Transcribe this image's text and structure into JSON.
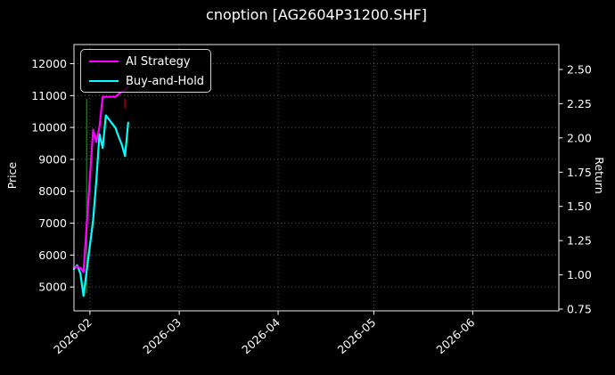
{
  "window": {
    "title": "cnoption [AG2604P31200.SHF]"
  },
  "colors": {
    "background": "#000000",
    "foreground": "#ffffff",
    "spine": "#e8e8e8",
    "grid": "#666666",
    "ai_strategy": "#ff00ff",
    "buy_and_hold": "#00ffff",
    "buy_signal": "#008000",
    "sell_marker": "#8b0000"
  },
  "legend": {
    "items": [
      {
        "label": "AI Strategy",
        "color": "#ff00ff"
      },
      {
        "label": "Buy-and-Hold",
        "color": "#00ffff"
      }
    ]
  },
  "axes": {
    "left_label": "Price",
    "right_label": "Return",
    "price_ticks": [
      5000,
      6000,
      7000,
      8000,
      9000,
      10000,
      11000,
      12000
    ],
    "return_ticks": [
      0.75,
      1.0,
      1.25,
      1.5,
      1.75,
      2.0,
      2.25,
      2.5
    ],
    "x_ticks": [
      {
        "date": "2026-02-01",
        "label": "2026-02"
      },
      {
        "date": "2026-03-01",
        "label": "2026-03"
      },
      {
        "date": "2026-04-01",
        "label": "2026-04"
      },
      {
        "date": "2026-05-01",
        "label": "2026-05"
      },
      {
        "date": "2026-06-01",
        "label": "2026-06"
      }
    ]
  },
  "chart_data": {
    "type": "line",
    "title": "cnoption [AG2604P31200.SHF]",
    "xlabel": "",
    "ylabel_left": "Price",
    "ylabel_right": "Return",
    "grid": true,
    "legend_position": "upper left",
    "xlim": [
      "2026-01-27",
      "2026-06-28"
    ],
    "price_lim": [
      4250,
      12600
    ],
    "return_lim": [
      0.737,
      2.682
    ],
    "x": [
      "2026-01-27",
      "2026-01-28",
      "2026-01-29",
      "2026-01-30",
      "2026-02-02",
      "2026-02-03",
      "2026-02-04",
      "2026-02-05",
      "2026-02-06",
      "2026-02-09",
      "2026-02-10",
      "2026-02-11",
      "2026-02-12",
      "2026-02-13"
    ],
    "series": [
      {
        "name": "Buy-and-Hold",
        "axis": "price",
        "color": "#00ffff",
        "values": [
          5560,
          5680,
          5420,
          4720,
          7100,
          8340,
          9790,
          9360,
          10380,
          9990,
          9710,
          9460,
          9100,
          10150
        ]
      },
      {
        "name": "AI Strategy",
        "axis": "return",
        "color": "#ff00ff",
        "values": [
          1.05,
          1.06,
          1.05,
          1.02,
          2.06,
          1.97,
          2.08,
          2.3,
          2.3,
          2.3,
          2.32,
          2.34,
          2.35,
          2.37
        ]
      }
    ],
    "markers": [
      {
        "kind": "vline",
        "name": "buy-signal",
        "date": "2026-01-31",
        "color": "#008000",
        "price_from": 4800,
        "price_to": 10900
      },
      {
        "kind": "vline",
        "name": "sell-marker",
        "date": "2026-02-12",
        "color": "#8b0000",
        "price_from": 10600,
        "price_to": 10900
      }
    ]
  }
}
